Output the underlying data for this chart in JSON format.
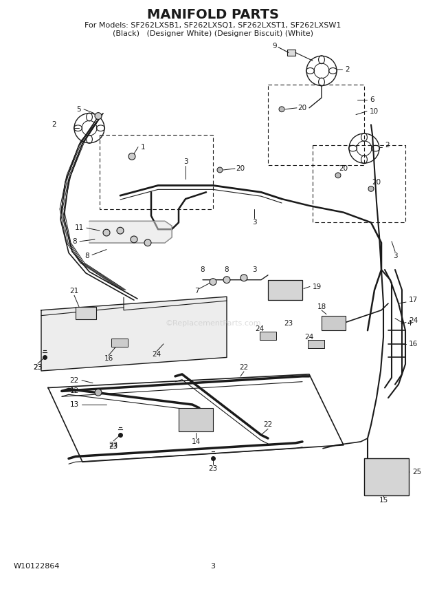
{
  "title": "MANIFOLD PARTS",
  "subtitle_line1": "For Models: SF262LXSB1, SF262LXSQ1, SF262LXST1, SF262LXSW1",
  "subtitle_line2": "(Black)   (Designer White) (Designer Biscuit) (White)",
  "footer_left": "W10122864",
  "footer_center": "3",
  "watermark": "©ReplacementParts.com",
  "bg_color": "#ffffff",
  "title_fontsize": 14,
  "subtitle_fontsize": 8,
  "footer_fontsize": 8,
  "fig_width": 6.2,
  "fig_height": 8.56,
  "dpi": 100
}
